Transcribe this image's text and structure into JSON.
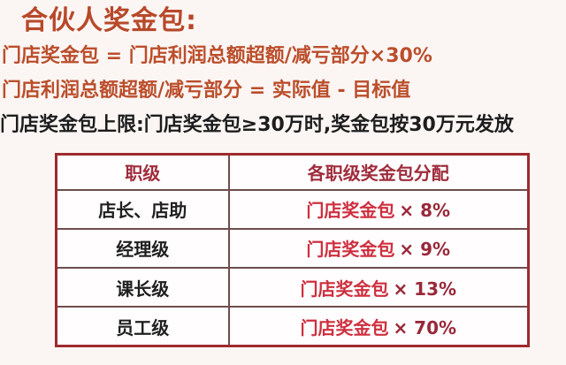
{
  "page": {
    "title": "合伙人奖金包:",
    "formula_line_1": "门店奖金包 = 门店利润总额超额/减亏部分×30%",
    "formula_line_2": "门店利润总额超额/减亏部分 = 实际值 - 目标值",
    "cap_line": "门店奖金包上限:门店奖金包≥30万时,奖金包按30万元发放"
  },
  "table": {
    "headers": {
      "level": "职级",
      "allocation": "各职级奖金包分配"
    },
    "rows": [
      {
        "level": "店长、店助",
        "formula_base": "门店奖金包",
        "formula_mult": "× 8%"
      },
      {
        "level": "经理级",
        "formula_base": "门店奖金包",
        "formula_mult": "× 9%"
      },
      {
        "level": "课长级",
        "formula_base": "门店奖金包",
        "formula_mult": "× 13%"
      },
      {
        "level": "员工级",
        "formula_base": "门店奖金包",
        "formula_mult": "× 70%"
      }
    ]
  },
  "colors": {
    "title_orange": "#b8482a",
    "formula_orange": "#bb4e2b",
    "cap_black": "#1d1d1d",
    "header_maroon": "#9e2c3c",
    "cell_level_black": "#1f1f1f",
    "allocation_red": "#ce2f3f",
    "multiplier_maroon": "#99283a",
    "table_outer_border": "#9e2b2e",
    "table_grid_line": "#6e4d4d",
    "background": "#fbf6f4"
  }
}
